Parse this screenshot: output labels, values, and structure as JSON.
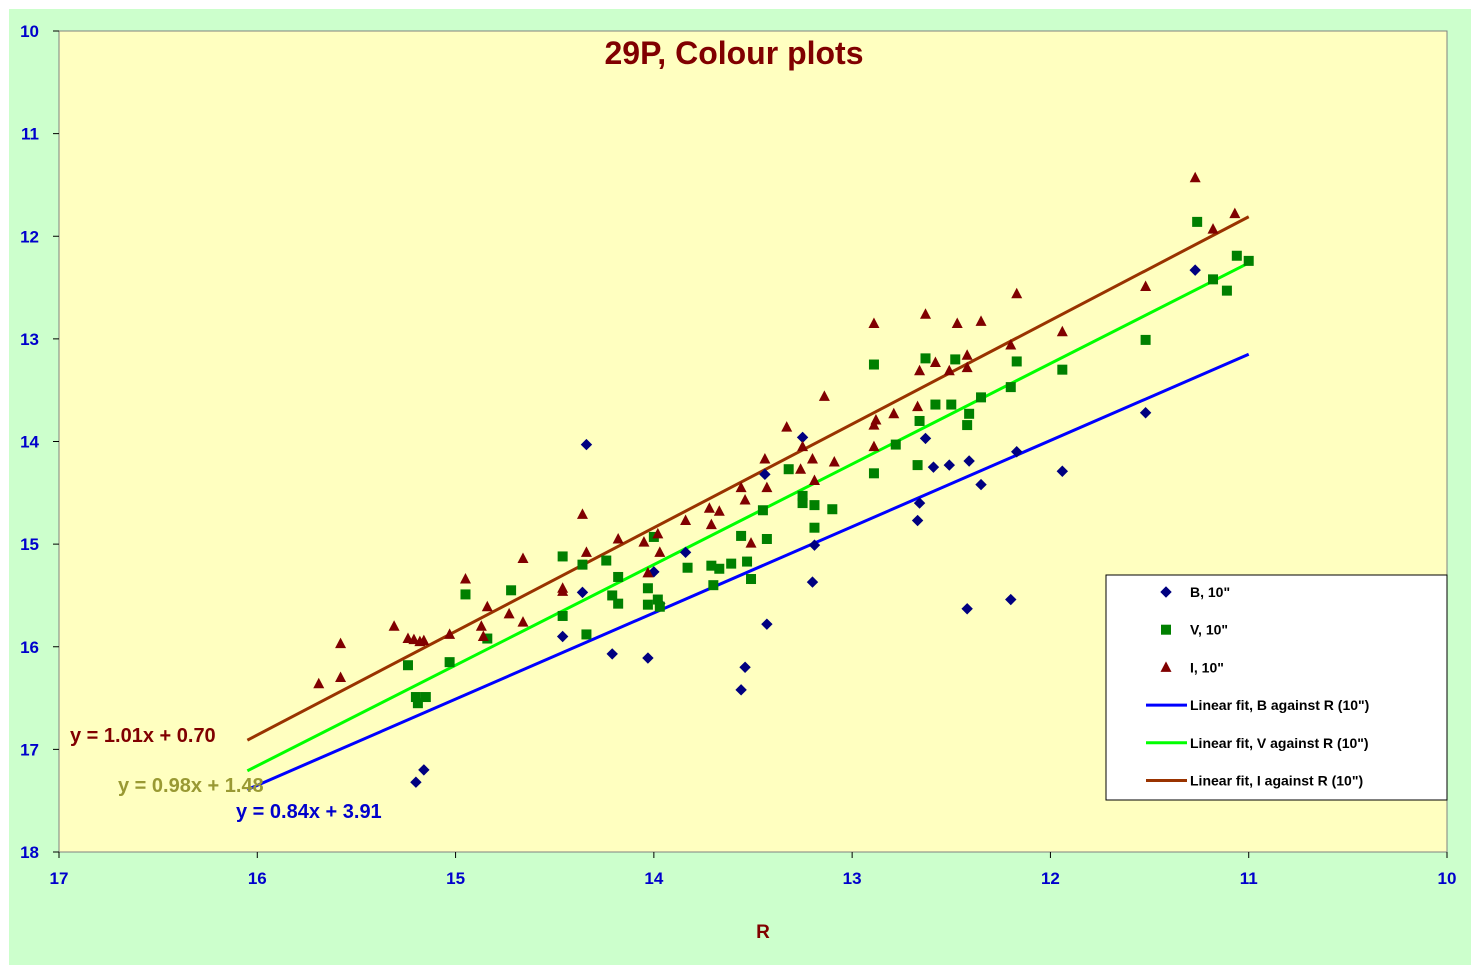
{
  "chart_data": {
    "type": "scatter",
    "title": "29P, Colour plots",
    "xlabel": "R",
    "ylabel": "",
    "xlim": [
      17,
      10
    ],
    "ylim": [
      10,
      18
    ],
    "x_ticks": [
      "17",
      "16",
      "15",
      "14",
      "13",
      "12",
      "11",
      "10"
    ],
    "y_ticks": [
      "10",
      "11",
      "12",
      "13",
      "14",
      "15",
      "16",
      "17",
      "18"
    ],
    "x_inverted": true,
    "y_inverted": true,
    "grid": false,
    "legend_position": "right",
    "colors": {
      "background": "#ccffcc",
      "plot_area": "#ffffc0",
      "title": "#800000",
      "tick_labels": "#0000cc",
      "axis_label": "#800000",
      "B": "#000080",
      "V": "#008000",
      "I": "#800000",
      "fit_B": "#0000ff",
      "fit_V": "#00ff00",
      "fit_I": "#993300"
    },
    "series": [
      {
        "name": "B, 10\"",
        "marker": "diamond",
        "points": [
          [
            15.2,
            17.32
          ],
          [
            15.16,
            17.2
          ],
          [
            14.34,
            14.03
          ],
          [
            14.36,
            15.47
          ],
          [
            14.46,
            15.9
          ],
          [
            14.21,
            16.07
          ],
          [
            14.03,
            16.11
          ],
          [
            13.97,
            15.58
          ],
          [
            14.0,
            15.27
          ],
          [
            13.84,
            15.08
          ],
          [
            13.56,
            16.42
          ],
          [
            13.54,
            16.2
          ],
          [
            13.43,
            15.78
          ],
          [
            13.44,
            14.32
          ],
          [
            13.25,
            13.96
          ],
          [
            13.19,
            15.01
          ],
          [
            13.2,
            15.37
          ],
          [
            12.67,
            14.77
          ],
          [
            12.66,
            14.6
          ],
          [
            12.63,
            13.97
          ],
          [
            12.59,
            14.25
          ],
          [
            12.51,
            14.23
          ],
          [
            12.42,
            15.63
          ],
          [
            12.41,
            14.19
          ],
          [
            12.35,
            14.42
          ],
          [
            12.2,
            15.54
          ],
          [
            12.17,
            14.1
          ],
          [
            11.94,
            14.29
          ],
          [
            11.52,
            13.72
          ],
          [
            11.27,
            12.33
          ]
        ]
      },
      {
        "name": "V, 10\"",
        "marker": "square",
        "points": [
          [
            15.24,
            16.18
          ],
          [
            15.2,
            16.49
          ],
          [
            15.19,
            16.55
          ],
          [
            15.15,
            16.49
          ],
          [
            15.03,
            16.15
          ],
          [
            14.95,
            15.49
          ],
          [
            14.84,
            15.92
          ],
          [
            14.72,
            15.45
          ],
          [
            14.46,
            15.12
          ],
          [
            14.46,
            15.7
          ],
          [
            14.36,
            15.2
          ],
          [
            14.34,
            15.88
          ],
          [
            14.24,
            15.16
          ],
          [
            14.21,
            15.5
          ],
          [
            14.18,
            15.32
          ],
          [
            14.18,
            15.58
          ],
          [
            14.03,
            15.43
          ],
          [
            14.03,
            15.59
          ],
          [
            13.98,
            15.54
          ],
          [
            13.97,
            15.61
          ],
          [
            14.0,
            14.93
          ],
          [
            13.83,
            15.23
          ],
          [
            13.71,
            15.21
          ],
          [
            13.7,
            15.4
          ],
          [
            13.67,
            15.24
          ],
          [
            13.61,
            15.19
          ],
          [
            13.56,
            14.92
          ],
          [
            13.53,
            15.17
          ],
          [
            13.51,
            15.34
          ],
          [
            13.43,
            14.95
          ],
          [
            13.45,
            14.67
          ],
          [
            13.32,
            14.27
          ],
          [
            13.25,
            14.53
          ],
          [
            13.25,
            14.6
          ],
          [
            13.19,
            14.62
          ],
          [
            13.19,
            14.84
          ],
          [
            13.1,
            14.66
          ],
          [
            12.89,
            13.25
          ],
          [
            12.89,
            14.31
          ],
          [
            12.78,
            14.03
          ],
          [
            12.67,
            14.23
          ],
          [
            12.66,
            13.8
          ],
          [
            12.63,
            13.19
          ],
          [
            12.58,
            13.64
          ],
          [
            12.5,
            13.64
          ],
          [
            12.48,
            13.2
          ],
          [
            12.42,
            13.84
          ],
          [
            12.41,
            13.73
          ],
          [
            12.35,
            13.57
          ],
          [
            12.2,
            13.47
          ],
          [
            12.17,
            13.22
          ],
          [
            11.94,
            13.3
          ],
          [
            11.52,
            13.01
          ],
          [
            11.26,
            11.86
          ],
          [
            11.18,
            12.42
          ],
          [
            11.11,
            12.53
          ],
          [
            11.06,
            12.19
          ],
          [
            11.0,
            12.24
          ]
        ]
      },
      {
        "name": "I, 10\"",
        "marker": "triangle",
        "points": [
          [
            15.69,
            16.36
          ],
          [
            15.58,
            15.97
          ],
          [
            15.58,
            16.3
          ],
          [
            15.31,
            15.8
          ],
          [
            15.24,
            15.92
          ],
          [
            15.21,
            15.93
          ],
          [
            15.18,
            15.95
          ],
          [
            15.16,
            15.94
          ],
          [
            15.03,
            15.88
          ],
          [
            14.95,
            15.34
          ],
          [
            14.87,
            15.8
          ],
          [
            14.86,
            15.9
          ],
          [
            14.84,
            15.61
          ],
          [
            14.73,
            15.68
          ],
          [
            14.66,
            15.14
          ],
          [
            14.66,
            15.76
          ],
          [
            14.46,
            15.43
          ],
          [
            14.46,
            15.46
          ],
          [
            14.36,
            14.71
          ],
          [
            14.34,
            15.08
          ],
          [
            14.18,
            14.95
          ],
          [
            14.05,
            14.98
          ],
          [
            14.03,
            15.28
          ],
          [
            13.98,
            14.9
          ],
          [
            13.97,
            15.08
          ],
          [
            13.84,
            14.77
          ],
          [
            13.72,
            14.65
          ],
          [
            13.71,
            14.81
          ],
          [
            13.67,
            14.68
          ],
          [
            13.56,
            14.45
          ],
          [
            13.54,
            14.57
          ],
          [
            13.51,
            14.99
          ],
          [
            13.44,
            14.17
          ],
          [
            13.43,
            14.45
          ],
          [
            13.33,
            13.86
          ],
          [
            13.26,
            14.27
          ],
          [
            13.25,
            14.05
          ],
          [
            13.19,
            14.38
          ],
          [
            13.2,
            14.17
          ],
          [
            13.14,
            13.56
          ],
          [
            13.09,
            14.2
          ],
          [
            12.89,
            12.85
          ],
          [
            12.89,
            13.84
          ],
          [
            12.88,
            13.79
          ],
          [
            12.89,
            14.05
          ],
          [
            12.79,
            13.73
          ],
          [
            12.67,
            13.66
          ],
          [
            12.66,
            13.31
          ],
          [
            12.63,
            12.76
          ],
          [
            12.58,
            13.23
          ],
          [
            12.51,
            13.31
          ],
          [
            12.47,
            12.85
          ],
          [
            12.42,
            13.16
          ],
          [
            12.42,
            13.28
          ],
          [
            12.35,
            12.83
          ],
          [
            12.2,
            13.06
          ],
          [
            12.17,
            12.56
          ],
          [
            11.94,
            12.93
          ],
          [
            11.52,
            12.49
          ],
          [
            11.27,
            11.43
          ],
          [
            11.18,
            11.93
          ],
          [
            11.07,
            11.78
          ]
        ]
      }
    ],
    "fits": [
      {
        "name": "Linear fit, B against R (10\")",
        "slope": 0.84,
        "intercept": 3.91,
        "x_range": [
          16.05,
          11.0
        ],
        "label": "y = 0.84x + 3.91",
        "color_key": "fit_B"
      },
      {
        "name": "Linear fit, V against R (10\")",
        "slope": 0.98,
        "intercept": 1.48,
        "x_range": [
          16.05,
          11.0
        ],
        "label": "y = 0.98x + 1.48",
        "color_key": "fit_V"
      },
      {
        "name": "Linear fit, I against R (10\")",
        "slope": 1.01,
        "intercept": 0.7,
        "x_range": [
          16.05,
          11.0
        ],
        "label": "y = 1.01x + 0.70",
        "color_key": "fit_I"
      }
    ],
    "equation_label_colors": [
      "#0000cc",
      "#999933",
      "#800000"
    ]
  }
}
